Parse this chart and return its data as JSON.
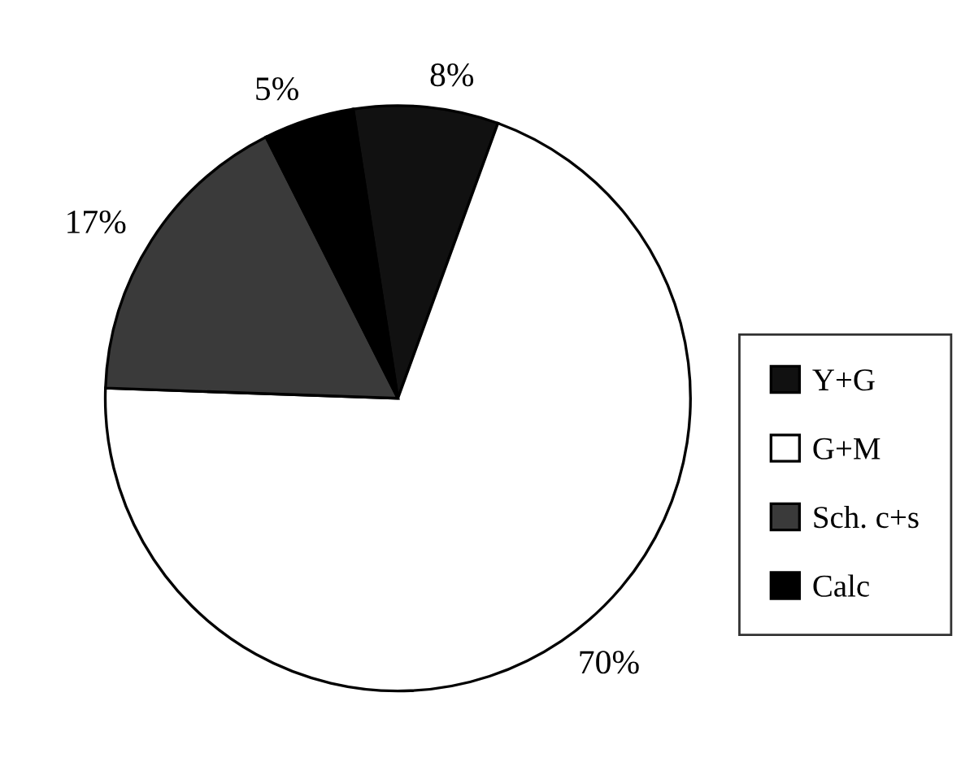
{
  "chart_data": {
    "type": "pie",
    "categories": [
      "Y+G",
      "G+M",
      "Sch. c+s",
      "Calc"
    ],
    "values": [
      8,
      70,
      17,
      5
    ],
    "colors": [
      "#111111",
      "#ffffff",
      "#3a3a3a",
      "#000000"
    ],
    "value_labels": [
      "8%",
      "70%",
      "17%",
      "5%"
    ],
    "legend": "right"
  }
}
